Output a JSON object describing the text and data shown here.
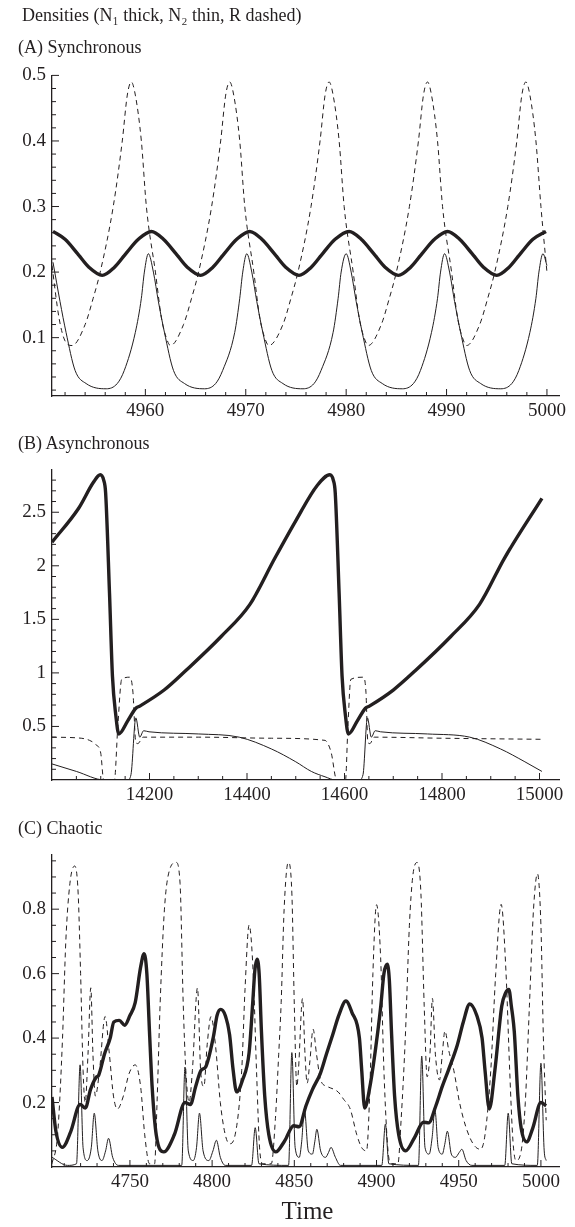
{
  "chart_data": [
    {
      "type": "line",
      "title": "(A) Synchronous",
      "ylabel": "Densities (N₁ thick, N₂ thin, R dashed)",
      "xlim": [
        4950.7,
        5001.2
      ],
      "ylim": [
        0.011,
        0.5
      ],
      "xticks": [
        {
          "value": 4952,
          "label": null
        },
        {
          "value": 4954,
          "label": null
        },
        {
          "value": 4956,
          "label": null
        },
        {
          "value": 4958,
          "label": null
        },
        4960,
        {
          "value": 4962,
          "label": null
        },
        {
          "value": 4964,
          "label": null
        },
        {
          "value": 4966,
          "label": null
        },
        {
          "value": 4968,
          "label": null
        },
        4970,
        {
          "value": 4972,
          "label": null
        },
        {
          "value": 4974,
          "label": null
        },
        {
          "value": 4976,
          "label": null
        },
        {
          "value": 4978,
          "label": null
        },
        4980,
        {
          "value": 4982,
          "label": null
        },
        {
          "value": 4984,
          "label": null
        },
        {
          "value": 4986,
          "label": null
        },
        {
          "value": 4988,
          "label": null
        },
        4990,
        {
          "value": 4992,
          "label": null
        },
        {
          "value": 4994,
          "label": null
        },
        {
          "value": 4996,
          "label": null
        },
        {
          "value": 4998,
          "label": null
        },
        5000
      ],
      "yticks": [
        {
          "value": 0.02,
          "label": null
        },
        {
          "value": 0.04,
          "label": null
        },
        {
          "value": 0.06,
          "label": null
        },
        {
          "value": 0.08,
          "label": null
        },
        0.1,
        {
          "value": 0.12,
          "label": null
        },
        {
          "value": 0.14,
          "label": null
        },
        {
          "value": 0.16,
          "label": null
        },
        {
          "value": 0.18,
          "label": null
        },
        0.2,
        {
          "value": 0.22,
          "label": null
        },
        {
          "value": 0.24,
          "label": null
        },
        {
          "value": 0.26,
          "label": null
        },
        {
          "value": 0.28,
          "label": null
        },
        0.3,
        {
          "value": 0.32,
          "label": null
        },
        {
          "value": 0.34,
          "label": null
        },
        {
          "value": 0.36,
          "label": null
        },
        {
          "value": 0.38,
          "label": null
        },
        0.4,
        {
          "value": 0.42,
          "label": null
        },
        {
          "value": 0.44,
          "label": null
        },
        {
          "value": 0.46,
          "label": null
        },
        {
          "value": 0.48,
          "label": null
        },
        0.5
      ],
      "series": [
        {
          "color": "#231f20",
          "line_style": "solid",
          "x": [
            4950.8,
            4952.0,
            4953.2,
            4954.4,
            4955.7,
            4956.9,
            4958.1,
            4959.3,
            4960.6,
            4961.8,
            4963.0,
            4964.2,
            4965.5,
            4966.7,
            4967.9,
            4969.1,
            4970.4,
            4971.6,
            4972.8,
            4974.0,
            4975.3,
            4976.5,
            4977.7,
            4978.9,
            4980.3,
            4981.5,
            4982.7,
            4983.9,
            4985.2,
            4986.4,
            4987.6,
            4988.8,
            4990.1,
            4991.3,
            4992.5,
            4993.7,
            4995.0,
            4996.2,
            4997.4,
            4998.6,
            4999.9
          ],
          "values": [
            0.262,
            0.25,
            0.229,
            0.207,
            0.195,
            0.207,
            0.229,
            0.25,
            0.262,
            0.25,
            0.229,
            0.207,
            0.195,
            0.207,
            0.229,
            0.25,
            0.262,
            0.25,
            0.229,
            0.207,
            0.195,
            0.207,
            0.229,
            0.25,
            0.262,
            0.25,
            0.229,
            0.207,
            0.195,
            0.207,
            0.229,
            0.25,
            0.262,
            0.25,
            0.229,
            0.207,
            0.195,
            0.207,
            0.229,
            0.25,
            0.262
          ]
        },
        {
          "color": "#231f20",
          "line_style": "solid",
          "x": [
            4950.8,
            4951.5,
            4952.1,
            4953.0,
            4954.1,
            4956.1,
            4957.2,
            4957.9,
            4959.0,
            4959.6,
            4959.9,
            4960.3,
            4960.8,
            4961.3,
            4961.9,
            4962.8,
            4963.9,
            4965.9,
            4967.0,
            4967.7,
            4968.9,
            4969.4,
            4969.7,
            4970.1,
            4970.6,
            4971.1,
            4971.7,
            4972.6,
            4973.7,
            4975.7,
            4976.8,
            4977.5,
            4978.7,
            4979.2,
            4979.5,
            4980.0,
            4980.5,
            4981.0,
            4981.6,
            4982.5,
            4983.6,
            4985.6,
            4986.7,
            4987.4,
            4988.5,
            4989.1,
            4989.4,
            4989.8,
            4990.3,
            4990.8,
            4991.4,
            4992.3,
            4993.4,
            4995.4,
            4996.5,
            4997.2,
            4998.3,
            4998.9,
            4999.2,
            4999.6,
            5000.0
          ],
          "values": [
            0.215,
            0.155,
            0.108,
            0.05,
            0.03,
            0.022,
            0.03,
            0.05,
            0.108,
            0.16,
            0.2,
            0.228,
            0.2,
            0.155,
            0.108,
            0.05,
            0.03,
            0.022,
            0.03,
            0.05,
            0.108,
            0.16,
            0.2,
            0.228,
            0.2,
            0.155,
            0.108,
            0.05,
            0.03,
            0.022,
            0.03,
            0.05,
            0.108,
            0.16,
            0.2,
            0.228,
            0.2,
            0.155,
            0.108,
            0.05,
            0.03,
            0.022,
            0.03,
            0.05,
            0.108,
            0.16,
            0.2,
            0.228,
            0.2,
            0.155,
            0.108,
            0.05,
            0.03,
            0.022,
            0.03,
            0.05,
            0.108,
            0.16,
            0.2,
            0.228,
            0.21
          ]
        },
        {
          "color": "#231f20",
          "line_style": "dashed",
          "x": [
            4950.7,
            4951.4,
            4952.0,
            4952.7,
            4954.0,
            4954.8,
            4955.5,
            4956.8,
            4957.7,
            4958.2,
            4958.6,
            4959.0,
            4959.6,
            4960.1,
            4961.0,
            4961.6,
            4962.2,
            4962.5,
            4963.8,
            4964.6,
            4965.3,
            4966.6,
            4967.5,
            4968.0,
            4968.4,
            4968.8,
            4969.4,
            4969.9,
            4970.8,
            4971.4,
            4972.0,
            4972.3,
            4973.7,
            4974.5,
            4975.2,
            4976.5,
            4977.4,
            4977.9,
            4978.3,
            4978.7,
            4979.3,
            4979.8,
            4980.7,
            4981.3,
            4981.9,
            4982.2,
            4983.5,
            4984.3,
            4985.0,
            4986.3,
            4987.2,
            4987.7,
            4988.1,
            4988.5,
            4989.1,
            4989.6,
            4990.5,
            4991.1,
            4991.7,
            4992.0,
            4993.3,
            4994.1,
            4994.8,
            4996.1,
            4997.0,
            4997.5,
            4997.9,
            4998.3,
            4998.9,
            4999.4,
            5000.0
          ],
          "values": [
            0.21,
            0.13,
            0.095,
            0.088,
            0.12,
            0.16,
            0.2,
            0.3,
            0.4,
            0.47,
            0.49,
            0.47,
            0.4,
            0.3,
            0.2,
            0.13,
            0.095,
            0.088,
            0.12,
            0.16,
            0.2,
            0.3,
            0.4,
            0.47,
            0.49,
            0.47,
            0.4,
            0.3,
            0.2,
            0.13,
            0.095,
            0.088,
            0.12,
            0.16,
            0.2,
            0.3,
            0.4,
            0.47,
            0.49,
            0.47,
            0.4,
            0.3,
            0.2,
            0.13,
            0.095,
            0.088,
            0.12,
            0.16,
            0.2,
            0.3,
            0.4,
            0.47,
            0.49,
            0.47,
            0.4,
            0.3,
            0.2,
            0.13,
            0.095,
            0.088,
            0.12,
            0.16,
            0.2,
            0.3,
            0.4,
            0.47,
            0.49,
            0.47,
            0.4,
            0.3,
            0.2
          ]
        }
      ]
    },
    {
      "type": "line",
      "title": "(B) Asynchronous",
      "xlim": [
        14000,
        15040
      ],
      "ylim": [
        0,
        2.9
      ],
      "xticks": [
        {
          "value": 14050,
          "label": null
        },
        {
          "value": 14100,
          "label": null
        },
        {
          "value": 14150,
          "label": null
        },
        14200,
        {
          "value": 14250,
          "label": null
        },
        {
          "value": 14300,
          "label": null
        },
        {
          "value": 14350,
          "label": null
        },
        14400,
        {
          "value": 14450,
          "label": null
        },
        {
          "value": 14500,
          "label": null
        },
        {
          "value": 14550,
          "label": null
        },
        14600,
        {
          "value": 14650,
          "label": null
        },
        {
          "value": 14700,
          "label": null
        },
        {
          "value": 14750,
          "label": null
        },
        14800,
        {
          "value": 14850,
          "label": null
        },
        {
          "value": 14900,
          "label": null
        },
        {
          "value": 14950,
          "label": null
        },
        15000
      ],
      "yticks": [
        {
          "value": 0.1,
          "label": null
        },
        {
          "value": 0.2,
          "label": null
        },
        {
          "value": 0.3,
          "label": null
        },
        {
          "value": 0.4,
          "label": null
        },
        0.5,
        {
          "value": 0.6,
          "label": null
        },
        {
          "value": 0.7,
          "label": null
        },
        {
          "value": 0.8,
          "label": null
        },
        {
          "value": 0.9,
          "label": null
        },
        1,
        {
          "value": 1.1,
          "label": null
        },
        {
          "value": 1.2,
          "label": null
        },
        {
          "value": 1.3,
          "label": null
        },
        {
          "value": 1.4,
          "label": null
        },
        1.5,
        {
          "value": 1.6,
          "label": null
        },
        {
          "value": 1.7,
          "label": null
        },
        {
          "value": 1.8,
          "label": null
        },
        {
          "value": 1.9,
          "label": null
        },
        2,
        {
          "value": 2.1,
          "label": null
        },
        {
          "value": 2.2,
          "label": null
        },
        {
          "value": 2.3,
          "label": null
        },
        {
          "value": 2.4,
          "label": null
        },
        2.5,
        {
          "value": 2.6,
          "label": null
        },
        {
          "value": 2.7,
          "label": null
        },
        {
          "value": 2.8,
          "label": null
        }
      ],
      "series": [
        {
          "color": "#231f20",
          "line_style": "solid",
          "x": [
            14000,
            14055,
            14085,
            14099,
            14106,
            14110,
            14118,
            14124,
            14131,
            14137,
            14155,
            14172,
            14180,
            14230,
            14274,
            14347,
            14406,
            14457,
            14500,
            14544,
            14570,
            14577,
            14581,
            14589,
            14595,
            14602,
            14608,
            14626,
            14643,
            14651,
            14700,
            14745,
            14818,
            14877,
            14928,
            15005
          ],
          "values": [
            2.22,
            2.54,
            2.78,
            2.85,
            2.8,
            2.68,
            1.74,
            0.97,
            0.6,
            0.43,
            0.55,
            0.67,
            0.69,
            0.84,
            1.02,
            1.34,
            1.64,
            2.07,
            2.42,
            2.75,
            2.85,
            2.8,
            2.68,
            1.74,
            0.97,
            0.6,
            0.43,
            0.55,
            0.67,
            0.69,
            0.84,
            1.02,
            1.34,
            1.64,
            2.07,
            2.63
          ]
        },
        {
          "color": "#231f20",
          "line_style": "solid",
          "x": [
            14000,
            14050,
            14108,
            14155,
            14162,
            14172,
            14180,
            14188,
            14199,
            14300,
            14384,
            14450,
            14500,
            14532,
            14560,
            14582,
            14630,
            14638,
            14647,
            14655,
            14663,
            14674,
            14770,
            14857,
            14920,
            14970,
            15005
          ],
          "values": [
            0.15,
            0.08,
            0,
            0,
            0.05,
            0.58,
            0.4,
            0.46,
            0.45,
            0.43,
            0.4,
            0.29,
            0.17,
            0.08,
            0.03,
            0,
            0,
            0.05,
            0.58,
            0.4,
            0.46,
            0.45,
            0.43,
            0.4,
            0.29,
            0.17,
            0.08
          ]
        },
        {
          "color": "#231f20",
          "line_style": "dashed",
          "x": [
            14000,
            14060,
            14077,
            14090,
            14100,
            14106,
            14128,
            14135,
            14143,
            14160,
            14166,
            14172,
            14176,
            14187,
            14300,
            14450,
            14560,
            14567,
            14573,
            14584,
            14602,
            14607,
            14613,
            14639,
            14644,
            14648,
            14652,
            14661,
            14800,
            15005
          ],
          "values": [
            0.4,
            0.39,
            0.37,
            0.33,
            0.25,
            0,
            0,
            0.5,
            0.94,
            0.96,
            0.82,
            0.35,
            0.34,
            0.4,
            0.4,
            0.39,
            0.37,
            0.33,
            0.25,
            0,
            0,
            0.5,
            0.94,
            0.96,
            0.82,
            0.35,
            0.34,
            0.4,
            0.39,
            0.38
          ]
        }
      ]
    },
    {
      "type": "line",
      "title": "(C) Chaotic",
      "xlabel": "Time",
      "xlim": [
        4702.6,
        5011
      ],
      "ylim": [
        0,
        0.97
      ],
      "xticks": [
        {
          "value": 4710,
          "label": null
        },
        {
          "value": 4720,
          "label": null
        },
        {
          "value": 4730,
          "label": null
        },
        {
          "value": 4740,
          "label": null
        },
        4750,
        {
          "value": 4760,
          "label": null
        },
        {
          "value": 4770,
          "label": null
        },
        {
          "value": 4780,
          "label": null
        },
        {
          "value": 4790,
          "label": null
        },
        4800,
        {
          "value": 4810,
          "label": null
        },
        {
          "value": 4820,
          "label": null
        },
        {
          "value": 4830,
          "label": null
        },
        {
          "value": 4840,
          "label": null
        },
        4850,
        {
          "value": 4860,
          "label": null
        },
        {
          "value": 4870,
          "label": null
        },
        {
          "value": 4880,
          "label": null
        },
        {
          "value": 4890,
          "label": null
        },
        4900,
        {
          "value": 4910,
          "label": null
        },
        {
          "value": 4920,
          "label": null
        },
        {
          "value": 4930,
          "label": null
        },
        {
          "value": 4940,
          "label": null
        },
        4950,
        {
          "value": 4960,
          "label": null
        },
        {
          "value": 4970,
          "label": null
        },
        {
          "value": 4980,
          "label": null
        },
        {
          "value": 4990,
          "label": null
        },
        5000
      ],
      "yticks": [
        {
          "value": 0.05,
          "label": null
        },
        {
          "value": 0.1,
          "label": null
        },
        {
          "value": 0.15,
          "label": null
        },
        0.2,
        {
          "value": 0.25,
          "label": null
        },
        {
          "value": 0.3,
          "label": null
        },
        {
          "value": 0.35,
          "label": null
        },
        0.4,
        {
          "value": 0.45,
          "label": null
        },
        {
          "value": 0.5,
          "label": null
        },
        {
          "value": 0.55,
          "label": null
        },
        0.6,
        {
          "value": 0.65,
          "label": null
        },
        {
          "value": 0.7,
          "label": null
        },
        {
          "value": 0.75,
          "label": null
        },
        0.8,
        {
          "value": 0.85,
          "label": null
        },
        {
          "value": 0.9,
          "label": null
        },
        {
          "value": 0.95,
          "label": null
        }
      ],
      "series": [
        {
          "color": "#231f20",
          "line_style": "solid",
          "x": [
            4702.6,
            4705,
            4708.9,
            4714,
            4719.7,
            4722.9,
            4726,
            4729.4,
            4731,
            4734.5,
            4738,
            4740.2,
            4743.5,
            4746.8,
            4750,
            4753.2,
            4756.5,
            4758.6,
            4760.3,
            4761.9,
            4763.5,
            4766,
            4770.6,
            4777,
            4783.5,
            4786.8,
            4790,
            4793.3,
            4796,
            4800.8,
            4803,
            4805.2,
            4808,
            4810.6,
            4812.8,
            4814.9,
            4818.5,
            4822.5,
            4824.7,
            4826,
            4827.3,
            4828.6,
            4830,
            4832,
            4834.5,
            4838.7,
            4844,
            4849.6,
            4852.9,
            4857.1,
            4861,
            4865.8,
            4869.5,
            4873.4,
            4877,
            4881.4,
            4885,
            4889.6,
            4891,
            4892.8,
            4896,
            4899.5,
            4902.6,
            4904.5,
            4906.5,
            4907.8,
            4909.1,
            4911,
            4913.5,
            4917.7,
            4923,
            4928.5,
            4931.7,
            4936.1,
            4940,
            4943.7,
            4949.1,
            4952.8,
            4956.7,
            4961,
            4964.2,
            4966,
            4968.6,
            4972,
            4976.2,
            4978.5,
            4980.5,
            4982,
            4983.8,
            4986,
            4988,
            4991.3,
            4995,
            5000,
            5003.2
          ],
          "values": [
            0.217,
            0.11,
            0.061,
            0.11,
            0.194,
            0.183,
            0.24,
            0.278,
            0.285,
            0.35,
            0.4,
            0.45,
            0.455,
            0.44,
            0.47,
            0.51,
            0.62,
            0.662,
            0.6,
            0.42,
            0.25,
            0.1,
            0.047,
            0.1,
            0.2,
            0.194,
            0.25,
            0.3,
            0.31,
            0.405,
            0.47,
            0.489,
            0.47,
            0.411,
            0.3,
            0.233,
            0.27,
            0.355,
            0.51,
            0.61,
            0.645,
            0.6,
            0.42,
            0.22,
            0.1,
            0.047,
            0.08,
            0.128,
            0.125,
            0.19,
            0.24,
            0.29,
            0.35,
            0.411,
            0.47,
            0.515,
            0.48,
            0.4,
            0.3,
            0.183,
            0.25,
            0.37,
            0.5,
            0.6,
            0.629,
            0.58,
            0.42,
            0.22,
            0.1,
            0.05,
            0.09,
            0.139,
            0.137,
            0.19,
            0.25,
            0.3,
            0.378,
            0.45,
            0.506,
            0.47,
            0.4,
            0.3,
            0.18,
            0.3,
            0.5,
            0.54,
            0.551,
            0.5,
            0.42,
            0.22,
            0.12,
            0.078,
            0.12,
            0.2,
            0.19
          ]
        },
        {
          "color": "#231f20",
          "line_style": "solid",
          "x": [
            4702.6,
            4712,
            4717.5,
            4719.7,
            4721.5,
            4724,
            4726.5,
            4728.3,
            4730.5,
            4733,
            4735.2,
            4737,
            4739.5,
            4743,
            4781.5,
            4783.5,
            4785.5,
            4788.5,
            4790.5,
            4792.3,
            4794.5,
            4798,
            4800.5,
            4802.6,
            4805,
            4808,
            4824,
            4826.2,
            4828.5,
            4846.5,
            4848.5,
            4850.5,
            4853,
            4854.5,
            4856.1,
            4858.5,
            4861,
            4862.5,
            4863.7,
            4866,
            4869,
            4870.8,
            4872.3,
            4875,
            4878,
            4903.2,
            4905.4,
            4907.5,
            4925.5,
            4927.5,
            4929.5,
            4932,
            4933.8,
            4935.5,
            4937.5,
            4940,
            4941.5,
            4943.1,
            4945.5,
            4948,
            4950.3,
            4951.9,
            4954.5,
            4958,
            4978,
            4980.1,
            4982.3,
            4997.8,
            5000,
            5002,
            5003.2
          ],
          "values": [
            0.03,
            0.005,
            0.01,
            0.317,
            0.06,
            0.02,
            0.06,
            0.167,
            0.05,
            0.02,
            0.05,
            0.089,
            0.03,
            0.005,
            0.005,
            0.31,
            0.05,
            0.02,
            0.06,
            0.167,
            0.05,
            0.02,
            0.05,
            0.083,
            0.03,
            0.005,
            0.005,
            0.122,
            0.01,
            0.005,
            0.355,
            0.06,
            0.03,
            0.08,
            0.18,
            0.05,
            0.04,
            0.08,
            0.117,
            0.05,
            0.03,
            0.045,
            0.061,
            0.03,
            0.005,
            0.005,
            0.133,
            0.01,
            0.005,
            0.344,
            0.06,
            0.04,
            0.09,
            0.178,
            0.06,
            0.04,
            0.07,
            0.111,
            0.04,
            0.03,
            0.045,
            0.055,
            0.02,
            0.005,
            0.005,
            0.167,
            0.01,
            0.005,
            0.322,
            0.05,
            0.02
          ]
        },
        {
          "color": "#231f20",
          "line_style": "dashed",
          "x": [
            4702.6,
            4706,
            4709,
            4711,
            4713.5,
            4716.4,
            4718.5,
            4720,
            4721.5,
            4722.8,
            4724.5,
            4726.2,
            4727.5,
            4729,
            4731.5,
            4734.9,
            4737.5,
            4740,
            4742.4,
            4746,
            4749.5,
            4753.2,
            4756.5,
            4759,
            4761.9,
            4765,
            4766.5,
            4768.4,
            4771,
            4774,
            4778.1,
            4780.5,
            4782.4,
            4784,
            4786,
            4788,
            4791.1,
            4793,
            4795,
            4797,
            4799.3,
            4802,
            4805,
            4808,
            4810.6,
            4814,
            4818,
            4820,
            4822.5,
            4825,
            4827,
            4829,
            4831,
            4836,
            4838.5,
            4840.5,
            4842,
            4843.8,
            4846.3,
            4848.5,
            4850,
            4851.5,
            4852.5,
            4855,
            4856.5,
            4857.8,
            4859.5,
            4861.4,
            4863.5,
            4866,
            4870,
            4876.6,
            4880,
            4884,
            4888,
            4891,
            4893.9,
            4896,
            4897.8,
            4900,
            4902.5,
            4904.5,
            4907,
            4909.1,
            4913,
            4915,
            4917.5,
            4920,
            4922,
            4924.7,
            4927,
            4929,
            4930.8,
            4932.5,
            4934,
            4935.8,
            4938.3,
            4940,
            4941.6,
            4944,
            4947,
            4950.5,
            4954.5,
            4959,
            4963.2,
            4966,
            4969.5,
            4972.5,
            4975.8,
            4978.8,
            4981,
            4983,
            4984.8,
            4988,
            4990.5,
            4993,
            4995.5,
            4997.9,
            5000,
            5001.5,
            5003.2
          ],
          "values": [
            0.01,
            0.1,
            0.4,
            0.7,
            0.88,
            0.934,
            0.85,
            0.6,
            0.3,
            0.2,
            0.35,
            0.556,
            0.35,
            0.22,
            0.3,
            0.467,
            0.35,
            0.22,
            0.18,
            0.22,
            0.29,
            0.317,
            0.25,
            0.1,
            0.01,
            0.01,
            0.2,
            0.51,
            0.8,
            0.92,
            0.945,
            0.88,
            0.51,
            0.3,
            0.2,
            0.3,
            0.556,
            0.3,
            0.25,
            0.38,
            0.467,
            0.38,
            0.2,
            0.1,
            0.072,
            0.1,
            0.3,
            0.55,
            0.751,
            0.6,
            0.3,
            0.05,
            0.01,
            0.01,
            0.15,
            0.35,
            0.51,
            0.8,
            0.945,
            0.85,
            0.5,
            0.25,
            0.3,
            0.523,
            0.35,
            0.26,
            0.33,
            0.428,
            0.35,
            0.27,
            0.25,
            0.233,
            0.21,
            0.18,
            0.1,
            0.06,
            0.05,
            0.25,
            0.6,
            0.814,
            0.65,
            0.3,
            0.05,
            0.01,
            0.01,
            0.15,
            0.4,
            0.75,
            0.9,
            0.945,
            0.85,
            0.5,
            0.28,
            0.35,
            0.523,
            0.35,
            0.27,
            0.35,
            0.422,
            0.36,
            0.3,
            0.2,
            0.122,
            0.07,
            0.055,
            0.1,
            0.3,
            0.6,
            0.815,
            0.6,
            0.3,
            0.08,
            0.02,
            0.05,
            0.2,
            0.5,
            0.8,
            0.91,
            0.75,
            0.4,
            0.145
          ]
        }
      ]
    }
  ]
}
